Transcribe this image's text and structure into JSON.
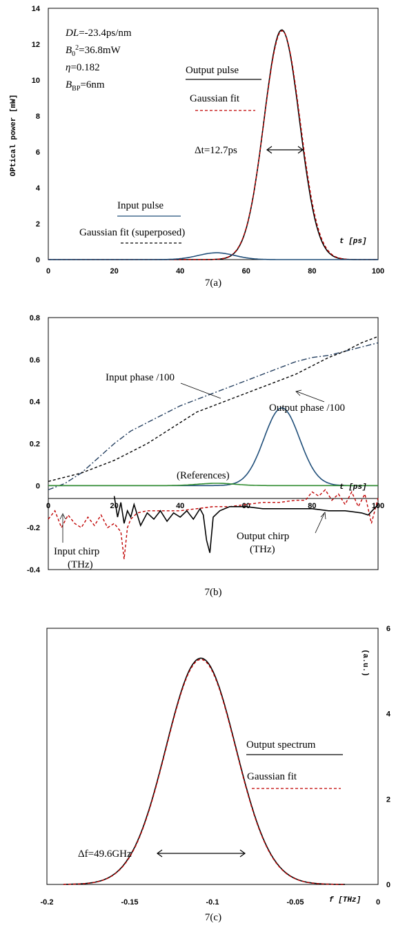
{
  "charts": [
    {
      "id": "a",
      "caption": "7(a)",
      "type": "line",
      "xlim": [
        0,
        100
      ],
      "ylim": [
        0,
        14
      ],
      "xticks": [
        "0",
        "20",
        "40",
        "60",
        "80",
        "100"
      ],
      "yticks": [
        "0",
        "2",
        "4",
        "6",
        "8",
        "10",
        "12",
        "14"
      ],
      "ylabel": "OPtical power [mW]",
      "xlabel": "t [ps]",
      "params": [
        "DL=-23.4ps/nm",
        "B0^2=36.8mW",
        "η=0.182",
        "B_BP=6nm"
      ],
      "legend": [
        {
          "label": "Output pulse",
          "color": "#000000",
          "dash": "solid"
        },
        {
          "label": "Gaussian fit",
          "color": "#c00000",
          "dash": "dashed"
        },
        {
          "label": "Input pulse",
          "color": "#1f4e79",
          "dash": "solid"
        },
        {
          "label": "Gaussian fit (superposed)",
          "color": "#000000",
          "dash": "dashed"
        }
      ],
      "annotation": "Δt=12.7ps",
      "series": [
        {
          "name": "Output pulse",
          "color": "#000000",
          "dash": "solid",
          "kind": "gauss",
          "amp": 12.8,
          "center": 70.8,
          "fwhm": 12.7
        },
        {
          "name": "Gaussian fit",
          "color": "#c00000",
          "dash": "dashed",
          "kind": "gauss",
          "amp": 12.75,
          "center": 70.9,
          "fwhm": 12.9
        },
        {
          "name": "Input pulse",
          "color": "#1f4e79",
          "dash": "solid",
          "kind": "gauss",
          "amp": 0.38,
          "center": 51,
          "fwhm": 13
        }
      ]
    },
    {
      "id": "b",
      "caption": "7(b)",
      "type": "line",
      "xlim": [
        0,
        100
      ],
      "ylim": [
        -0.4,
        0.8
      ],
      "xticks": [
        "0",
        "20",
        "40",
        "60",
        "80",
        "100"
      ],
      "yticks": [
        "-0.4",
        "-0.2",
        "0",
        "0.2",
        "0.4",
        "0.6",
        "0.8"
      ],
      "xlabel": "t [ps]",
      "labels": {
        "input_phase": "Input phase /100",
        "output_phase": "Output phase /100",
        "references": "(References)",
        "input_chirp_1": "Input chirp",
        "input_chirp_2": "(THz)",
        "output_chirp_1": "Output chirp",
        "output_chirp_2": "(THz)"
      },
      "series": [
        {
          "name": "Input phase /100",
          "color": "#243f60",
          "dash": "dashdot",
          "x": [
            0,
            5,
            10,
            15,
            20,
            25,
            30,
            35,
            40,
            45,
            50,
            55,
            60,
            65,
            70,
            75,
            80,
            85,
            90,
            95,
            100
          ],
          "y": [
            -0.02,
            0.01,
            0.06,
            0.13,
            0.2,
            0.26,
            0.3,
            0.34,
            0.38,
            0.41,
            0.44,
            0.47,
            0.5,
            0.53,
            0.56,
            0.59,
            0.61,
            0.62,
            0.64,
            0.66,
            0.68
          ]
        },
        {
          "name": "Output phase /100",
          "color": "#000000",
          "dash": "dashed",
          "x": [
            0,
            5,
            10,
            15,
            20,
            25,
            30,
            35,
            40,
            45,
            50,
            55,
            60,
            65,
            70,
            75,
            80,
            85,
            90,
            95,
            100
          ],
          "y": [
            0.02,
            0.04,
            0.06,
            0.09,
            0.12,
            0.16,
            0.2,
            0.25,
            0.3,
            0.35,
            0.38,
            0.41,
            0.44,
            0.47,
            0.5,
            0.53,
            0.57,
            0.61,
            0.64,
            0.68,
            0.71
          ]
        },
        {
          "name": "Output pulse ref",
          "color": "#1f4e79",
          "dash": "solid",
          "kind": "gauss",
          "amp": 0.37,
          "center": 70.8,
          "fwhm": 12.7
        },
        {
          "name": "Input pulse ref",
          "color": "#2e8b2e",
          "dash": "solid",
          "kind": "gauss",
          "amp": 0.011,
          "center": 51,
          "fwhm": 13
        },
        {
          "name": "Input chirp",
          "color": "#c00000",
          "dash": "dashed",
          "x": [
            0,
            2,
            4,
            6,
            8,
            10,
            12,
            14,
            16,
            18,
            20,
            22,
            23,
            24,
            25,
            27,
            30,
            35,
            40,
            45,
            50,
            55,
            60,
            65,
            70,
            75,
            78,
            80,
            82,
            84,
            86,
            88,
            90,
            92,
            94,
            96,
            98,
            100
          ],
          "y": [
            -0.16,
            -0.12,
            -0.2,
            -0.14,
            -0.18,
            -0.2,
            -0.15,
            -0.19,
            -0.14,
            -0.2,
            -0.18,
            -0.22,
            -0.35,
            -0.2,
            -0.16,
            -0.13,
            -0.12,
            -0.12,
            -0.12,
            -0.11,
            -0.1,
            -0.1,
            -0.09,
            -0.08,
            -0.08,
            -0.07,
            -0.07,
            -0.03,
            -0.05,
            -0.02,
            -0.07,
            -0.04,
            -0.09,
            -0.03,
            -0.1,
            -0.04,
            -0.18,
            -0.06
          ]
        },
        {
          "name": "Output chirp",
          "color": "#000000",
          "dash": "solid",
          "x": [
            20,
            21,
            22,
            23,
            24,
            25,
            26,
            28,
            30,
            32,
            34,
            36,
            38,
            40,
            42,
            44,
            46,
            47,
            48,
            49,
            50,
            52,
            55,
            60,
            65,
            70,
            75,
            80,
            85,
            90,
            95,
            97,
            100
          ],
          "y": [
            -0.05,
            -0.15,
            -0.08,
            -0.18,
            -0.12,
            -0.15,
            -0.09,
            -0.19,
            -0.13,
            -0.16,
            -0.12,
            -0.17,
            -0.13,
            -0.15,
            -0.12,
            -0.16,
            -0.11,
            -0.14,
            -0.26,
            -0.32,
            -0.15,
            -0.12,
            -0.1,
            -0.1,
            -0.11,
            -0.11,
            -0.11,
            -0.11,
            -0.12,
            -0.12,
            -0.13,
            -0.14,
            -0.09
          ]
        }
      ]
    },
    {
      "id": "c",
      "caption": "7(c)",
      "type": "line",
      "xlim": [
        -0.2,
        0
      ],
      "ylim": [
        0,
        6
      ],
      "xticks": [
        "-0.2",
        "-0.15",
        "-0.1",
        "-0.05",
        "0"
      ],
      "yticks": [
        "0",
        "2",
        "4",
        "6"
      ],
      "xlabel": "f [THz]",
      "ylabel": "(a.u.)",
      "legend": [
        {
          "label": "Output spectrum",
          "color": "#000000",
          "dash": "solid"
        },
        {
          "label": "Gaussian fit",
          "color": "#c00000",
          "dash": "dashed"
        }
      ],
      "annotation": "Δf=49.6GHz",
      "series": [
        {
          "name": "Output spectrum",
          "color": "#000000",
          "dash": "solid",
          "kind": "gauss",
          "amp": 5.3,
          "center": -0.107,
          "fwhm": 0.0496,
          "xmin": -0.19,
          "xmax": -0.02
        },
        {
          "name": "Gaussian fit",
          "color": "#c00000",
          "dash": "dashed",
          "kind": "gauss",
          "amp": 5.27,
          "center": -0.107,
          "fwhm": 0.0494,
          "xmin": -0.19,
          "xmax": -0.02
        }
      ]
    }
  ]
}
